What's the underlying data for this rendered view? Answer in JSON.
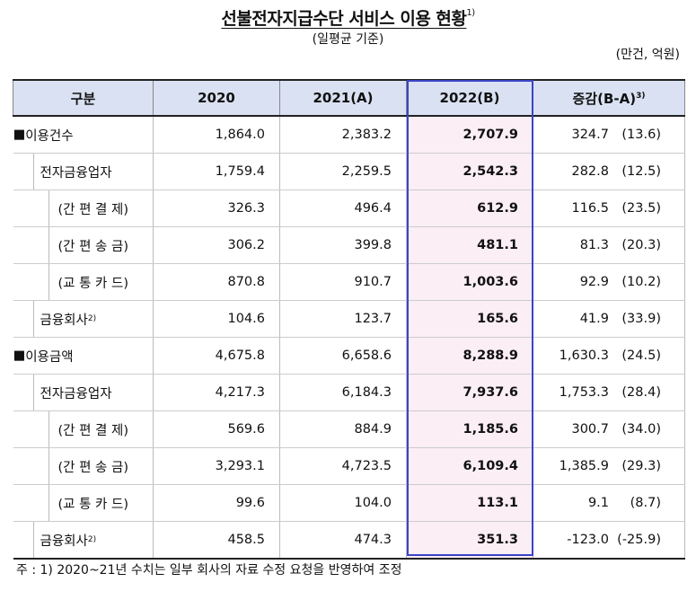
{
  "title": "선불전자지급수단 서비스 이용 현황",
  "title_sup": "1)",
  "subtitle": "(일평균 기준)",
  "unit": "(만건, 억원)",
  "columns": {
    "category": "구분",
    "c2020": "2020",
    "c2021": "2021(A)",
    "c2022": "2022(B)",
    "change": "증감(B-A)",
    "change_sup": "3)"
  },
  "rows": [
    {
      "label": "이용건수",
      "bullet": "■",
      "v2020": "1,864.0",
      "v2021": "2,383.2",
      "v2022": "2,707.9",
      "chg": "324.7",
      "pct": "(13.6)"
    },
    {
      "label": "전자금융업자",
      "v2020": "1,759.4",
      "v2021": "2,259.5",
      "v2022": "2,542.3",
      "chg": "282.8",
      "pct": "(12.5)"
    },
    {
      "label": "(간 편 결 제)",
      "v2020": "326.3",
      "v2021": "496.4",
      "v2022": "612.9",
      "chg": "116.5",
      "pct": "(23.5)"
    },
    {
      "label": "(간 편 송 금)",
      "v2020": "306.2",
      "v2021": "399.8",
      "v2022": "481.1",
      "chg": "81.3",
      "pct": "(20.3)"
    },
    {
      "label": "(교 통 카 드)",
      "v2020": "870.8",
      "v2021": "910.7",
      "v2022": "1,003.6",
      "chg": "92.9",
      "pct": "(10.2)"
    },
    {
      "label": "금융회사",
      "sup": "2)",
      "v2020": "104.6",
      "v2021": "123.7",
      "v2022": "165.6",
      "chg": "41.9",
      "pct": "(33.9)"
    },
    {
      "label": "이용금액",
      "bullet": "■",
      "v2020": "4,675.8",
      "v2021": "6,658.6",
      "v2022": "8,288.9",
      "chg": "1,630.3",
      "pct": "(24.5)"
    },
    {
      "label": "전자금융업자",
      "v2020": "4,217.3",
      "v2021": "6,184.3",
      "v2022": "7,937.6",
      "chg": "1,753.3",
      "pct": "(28.4)"
    },
    {
      "label": "(간 편 결 제)",
      "v2020": "569.6",
      "v2021": "884.9",
      "v2022": "1,185.6",
      "chg": "300.7",
      "pct": "(34.0)"
    },
    {
      "label": "(간 편 송 금)",
      "v2020": "3,293.1",
      "v2021": "4,723.5",
      "v2022": "6,109.4",
      "chg": "1,385.9",
      "pct": "(29.3)"
    },
    {
      "label": "(교 통 카 드)",
      "v2020": "99.6",
      "v2021": "104.0",
      "v2022": "113.1",
      "chg": "9.1",
      "pct": "(8.7)"
    },
    {
      "label": "금융회사",
      "sup": "2)",
      "v2020": "458.5",
      "v2021": "474.3",
      "v2022": "351.3",
      "chg": "-123.0",
      "pct": "(-25.9)"
    }
  ],
  "note": "주 : 1) 2020~21년 수치는 일부 회사의 자료 수정 요청을 반영하여 조정"
}
